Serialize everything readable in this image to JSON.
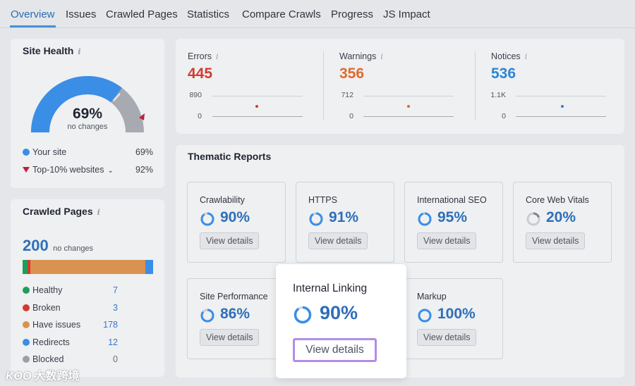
{
  "tabs": [
    "Overview",
    "Issues",
    "Crawled Pages",
    "Statistics",
    "Compare Crawls",
    "Progress",
    "JS Impact"
  ],
  "site_health": {
    "title": "Site Health",
    "info_icon": "info-icon",
    "percent": "69%",
    "caption": "no changes",
    "gauge_fill": 0.69,
    "legend": [
      {
        "label": "Your site",
        "value": "69%",
        "color": "#3a8ee6"
      },
      {
        "label": "Top-10% websites",
        "value": "92%",
        "color": "#c41e3a"
      }
    ]
  },
  "crawled_pages": {
    "title": "Crawled Pages",
    "info_icon": "info-icon",
    "count": "200",
    "caption": "no changes",
    "rows": [
      {
        "label": "Healthy",
        "value": "7",
        "color": "#1f9e5a"
      },
      {
        "label": "Broken",
        "value": "3",
        "color": "#d43a2f"
      },
      {
        "label": "Have issues",
        "value": "178",
        "color": "#d9924f"
      },
      {
        "label": "Redirects",
        "value": "12",
        "color": "#3a8ee6"
      },
      {
        "label": "Blocked",
        "value": "0",
        "color": "#9aa0a8"
      }
    ]
  },
  "metrics": [
    {
      "label": "Errors",
      "value": "445",
      "color": "#d43a2f",
      "axis_max": "890",
      "axis_min": "0",
      "point": 0.5
    },
    {
      "label": "Warnings",
      "value": "356",
      "color": "#e06a2c",
      "axis_max": "712",
      "axis_min": "0",
      "point": 0.5
    },
    {
      "label": "Notices",
      "value": "536",
      "color": "#2f85d6",
      "axis_max": "1.1K",
      "axis_min": "0",
      "point": 0.49
    }
  ],
  "thematic": {
    "title": "Thematic Reports",
    "button_label": "View details",
    "cards": [
      {
        "label": "Crawlability",
        "value": "90%",
        "fill": 0.9,
        "ring_color": "#3a8ee6"
      },
      {
        "label": "HTTPS",
        "value": "91%",
        "fill": 0.91,
        "ring_color": "#3a8ee6"
      },
      {
        "label": "International SEO",
        "value": "95%",
        "fill": 0.95,
        "ring_color": "#3a8ee6"
      },
      {
        "label": "Core Web Vitals",
        "value": "20%",
        "fill": 0.2,
        "ring_color": "#9aa0a8"
      },
      {
        "label": "Site Performance",
        "value": "86%",
        "fill": 0.86,
        "ring_color": "#3a8ee6"
      },
      {
        "label": "Markup",
        "value": "100%",
        "fill": 1.0,
        "ring_color": "#3a8ee6"
      }
    ],
    "highlight": {
      "label": "Internal Linking",
      "value": "90%",
      "fill": 0.9,
      "button_label": "View details",
      "border_color": "#b48ce8"
    }
  },
  "watermark": "大数跨境"
}
